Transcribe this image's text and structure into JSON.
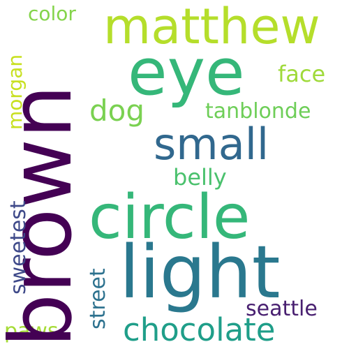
{
  "words": {
    "brown": {
      "text": "brown",
      "color": "#440154"
    },
    "eye": {
      "text": "eye",
      "color": "#35b779"
    },
    "matthew": {
      "text": "matthew",
      "color": "#b5de2b"
    },
    "light": {
      "text": "light",
      "color": "#2a788e"
    },
    "circle": {
      "text": "circle",
      "color": "#35b779"
    },
    "small": {
      "text": "small",
      "color": "#31688e"
    },
    "chocolate": {
      "text": "chocolate",
      "color": "#1f9e89"
    },
    "dog": {
      "text": "dog",
      "color": "#7ad151"
    },
    "tanblonde": {
      "text": "tanblonde",
      "color": "#6ece58"
    },
    "face": {
      "text": "face",
      "color": "#9fda3a"
    },
    "color": {
      "text": "color",
      "color": "#84d44b"
    },
    "belly": {
      "text": "belly",
      "color": "#4ac16d"
    },
    "seattle": {
      "text": "seattle",
      "color": "#481f70"
    },
    "paws": {
      "text": "paws",
      "color": "#a5db36"
    },
    "morgan": {
      "text": "morgan",
      "color": "#c8e020"
    },
    "sweetest": {
      "text": "sweetest",
      "color": "#3e4989"
    },
    "street": {
      "text": "street",
      "color": "#2c718e"
    }
  }
}
